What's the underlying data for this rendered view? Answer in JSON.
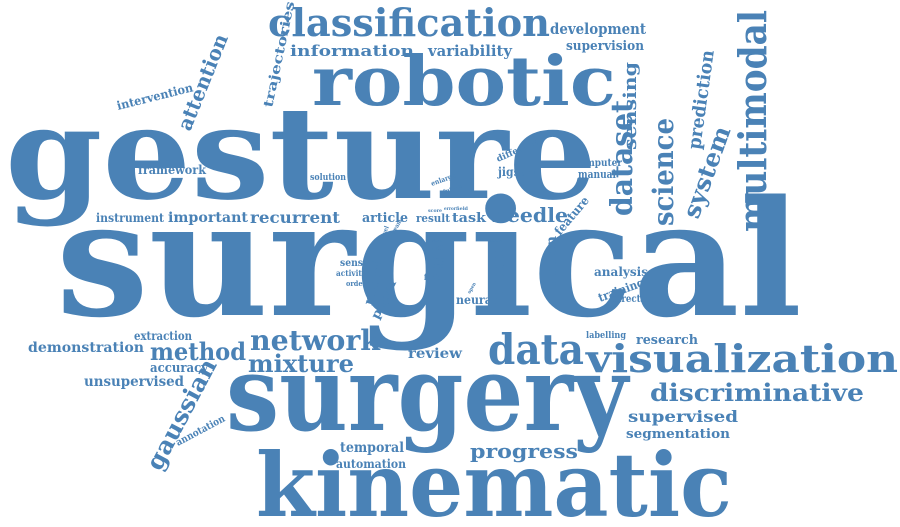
{
  "cloud": {
    "color": "#4a82b6",
    "words": [
      "surgical",
      "gesture",
      "surgery",
      "kinematic",
      "robotic",
      "classification",
      "multimodal",
      "visualization",
      "data",
      "network",
      "discriminative",
      "dataset",
      "science",
      "method",
      "mixture",
      "gaussian",
      "system",
      "attention",
      "sensing",
      "prediction",
      "needle",
      "progress",
      "information",
      "variability",
      "development",
      "supervision",
      "trajectories",
      "intervention",
      "framework",
      "solution",
      "jigsaw",
      "manual",
      "computer",
      "different",
      "instrument",
      "important",
      "recurrent",
      "article",
      "result",
      "task",
      "feature",
      "model",
      "robot",
      "paper",
      "neural",
      "sensor",
      "activity",
      "order",
      "fusion",
      "video",
      "time",
      "skill",
      "step",
      "state",
      "level",
      "stream",
      "score",
      "error",
      "field",
      "future",
      "enlarge",
      "open",
      "action",
      "analysis",
      "training",
      "direction",
      "labelling",
      "research",
      "supervised",
      "segmentation",
      "review",
      "demonstration",
      "extraction",
      "accuracy",
      "unsupervised",
      "annotation",
      "temporal",
      "automation"
    ]
  }
}
